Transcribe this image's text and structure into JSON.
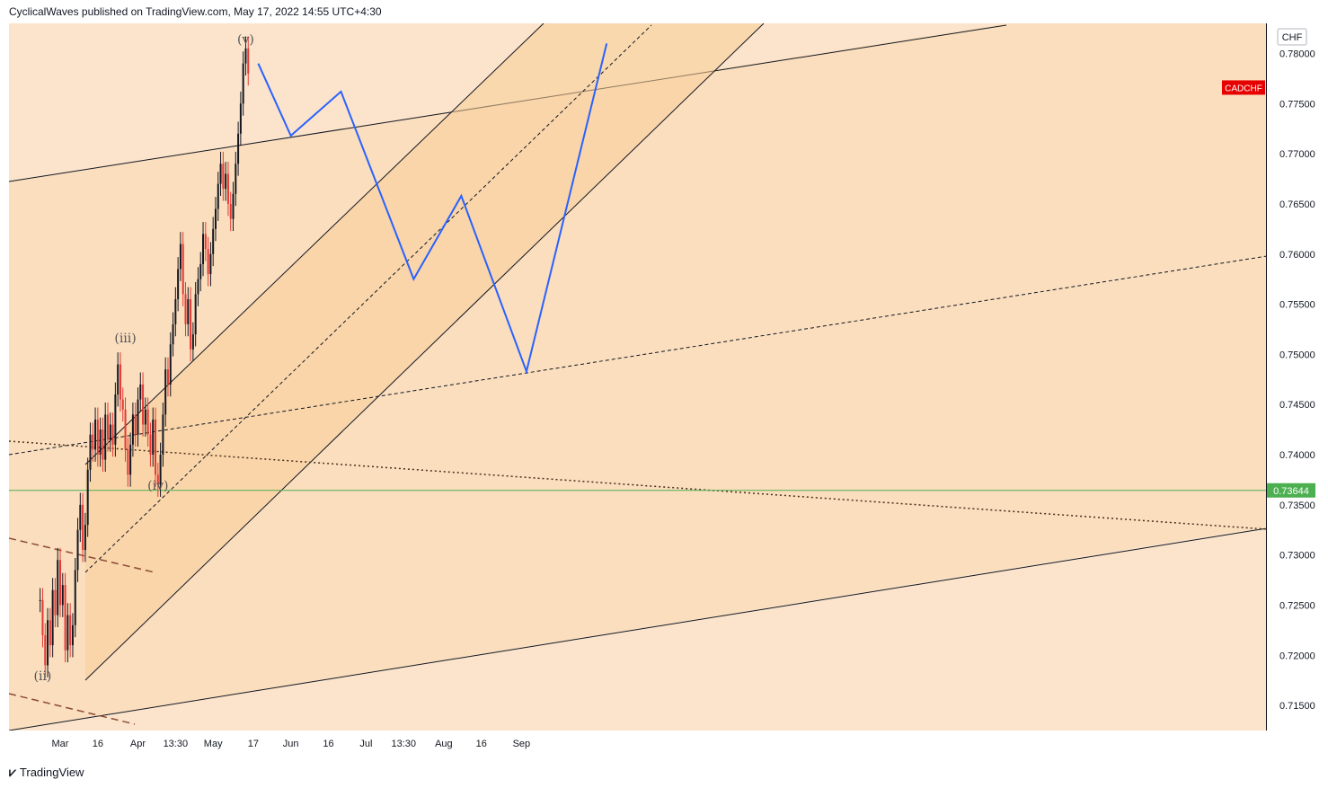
{
  "header": {
    "text": "CyclicalWaves published on TradingView.com, May 17, 2022 14:55 UTC+4:30"
  },
  "footer": {
    "logo_icon": "tradingview-logo-icon",
    "brand": "TradingView"
  },
  "colors": {
    "background": "#fbe4cb",
    "channel_fill": "#f9d6ae",
    "projection_line": "#2962ff",
    "support_line": "#4caf50",
    "candle_up": "#131722",
    "candle_down": "#e53935",
    "price_tag": "#e60000"
  },
  "chart_data": {
    "type": "line",
    "symbol": "CADCHF",
    "currency": "CHF",
    "ylim": [
      0.7125,
      0.783
    ],
    "y_ticks": [
      "0.78000",
      "0.77500",
      "0.77000",
      "0.76500",
      "0.76000",
      "0.75500",
      "0.75000",
      "0.74500",
      "0.74000",
      "0.73500",
      "0.73000",
      "0.72500",
      "0.72000",
      "0.71500"
    ],
    "x_ticks": [
      "Mar",
      "16",
      "Apr",
      "13:30",
      "May",
      "17",
      "Jun",
      "16",
      "Jul",
      "13:30",
      "Aug",
      "16",
      "Sep"
    ],
    "horizontal_line": {
      "value": 0.73644,
      "label": "0.73644"
    },
    "price_tag": {
      "label": "CADCHF",
      "value": 0.7766
    },
    "wave_labels": [
      {
        "label": "(ii)",
        "date": "2022-02-22",
        "value": 0.7175
      },
      {
        "label": "(iii)",
        "date": "2022-03-27",
        "value": 0.7512
      },
      {
        "label": "(iv)",
        "date": "2022-04-09",
        "value": 0.7365
      },
      {
        "label": "(v)",
        "date": "2022-05-14",
        "value": 0.781
      }
    ],
    "projection": {
      "name": "",
      "points": [
        {
          "date": "2022-05-19",
          "value": 0.779
        },
        {
          "date": "2022-06-01",
          "value": 0.7718
        },
        {
          "date": "2022-06-21",
          "value": 0.7762
        },
        {
          "date": "2022-07-20",
          "value": 0.7575
        },
        {
          "date": "2022-08-08",
          "value": 0.7658
        },
        {
          "date": "2022-09-03",
          "value": 0.7483
        },
        {
          "date": "2022-10-05",
          "value": 0.781
        }
      ]
    },
    "ohlc_series": [
      {
        "date": "2022-02-21",
        "value": 0.7255
      },
      {
        "date": "2022-02-22",
        "value": 0.722
      },
      {
        "date": "2022-02-23",
        "value": 0.719
      },
      {
        "date": "2022-02-24",
        "value": 0.7235
      },
      {
        "date": "2022-02-25",
        "value": 0.721
      },
      {
        "date": "2022-02-26",
        "value": 0.7265
      },
      {
        "date": "2022-02-27",
        "value": 0.724
      },
      {
        "date": "2022-02-28",
        "value": 0.7295
      },
      {
        "date": "2022-03-01",
        "value": 0.725
      },
      {
        "date": "2022-03-02",
        "value": 0.727
      },
      {
        "date": "2022-03-03",
        "value": 0.7205
      },
      {
        "date": "2022-03-04",
        "value": 0.724
      },
      {
        "date": "2022-03-05",
        "value": 0.721
      },
      {
        "date": "2022-03-06",
        "value": 0.723
      },
      {
        "date": "2022-03-07",
        "value": 0.7285
      },
      {
        "date": "2022-03-08",
        "value": 0.7325
      },
      {
        "date": "2022-03-09",
        "value": 0.735
      },
      {
        "date": "2022-03-10",
        "value": 0.7305
      },
      {
        "date": "2022-03-11",
        "value": 0.733
      },
      {
        "date": "2022-03-12",
        "value": 0.7385
      },
      {
        "date": "2022-03-13",
        "value": 0.742
      },
      {
        "date": "2022-03-14",
        "value": 0.7405
      },
      {
        "date": "2022-03-15",
        "value": 0.7435
      },
      {
        "date": "2022-03-16",
        "value": 0.74
      },
      {
        "date": "2022-03-17",
        "value": 0.7425
      },
      {
        "date": "2022-03-18",
        "value": 0.7395
      },
      {
        "date": "2022-03-19",
        "value": 0.744
      },
      {
        "date": "2022-03-20",
        "value": 0.7415
      },
      {
        "date": "2022-03-21",
        "value": 0.743
      },
      {
        "date": "2022-03-22",
        "value": 0.741
      },
      {
        "date": "2022-03-23",
        "value": 0.746
      },
      {
        "date": "2022-03-24",
        "value": 0.749
      },
      {
        "date": "2022-03-25",
        "value": 0.7455
      },
      {
        "date": "2022-03-26",
        "value": 0.7445
      },
      {
        "date": "2022-03-27",
        "value": 0.7405
      },
      {
        "date": "2022-03-28",
        "value": 0.738
      },
      {
        "date": "2022-03-29",
        "value": 0.741
      },
      {
        "date": "2022-03-30",
        "value": 0.744
      },
      {
        "date": "2022-03-31",
        "value": 0.742
      },
      {
        "date": "2022-04-01",
        "value": 0.7455
      },
      {
        "date": "2022-04-02",
        "value": 0.747
      },
      {
        "date": "2022-04-03",
        "value": 0.743
      },
      {
        "date": "2022-04-04",
        "value": 0.7445
      },
      {
        "date": "2022-04-05",
        "value": 0.742
      },
      {
        "date": "2022-04-06",
        "value": 0.74
      },
      {
        "date": "2022-04-07",
        "value": 0.7435
      },
      {
        "date": "2022-04-08",
        "value": 0.738
      },
      {
        "date": "2022-04-09",
        "value": 0.737
      },
      {
        "date": "2022-04-10",
        "value": 0.74
      },
      {
        "date": "2022-04-11",
        "value": 0.744
      },
      {
        "date": "2022-04-12",
        "value": 0.7485
      },
      {
        "date": "2022-04-13",
        "value": 0.747
      },
      {
        "date": "2022-04-14",
        "value": 0.751
      },
      {
        "date": "2022-04-15",
        "value": 0.753
      },
      {
        "date": "2022-04-16",
        "value": 0.7555
      },
      {
        "date": "2022-04-17",
        "value": 0.7585
      },
      {
        "date": "2022-04-18",
        "value": 0.761
      },
      {
        "date": "2022-04-19",
        "value": 0.756
      },
      {
        "date": "2022-04-20",
        "value": 0.753
      },
      {
        "date": "2022-04-21",
        "value": 0.7555
      },
      {
        "date": "2022-04-22",
        "value": 0.7505
      },
      {
        "date": "2022-04-23",
        "value": 0.752
      },
      {
        "date": "2022-04-24",
        "value": 0.756
      },
      {
        "date": "2022-04-25",
        "value": 0.7575
      },
      {
        "date": "2022-04-26",
        "value": 0.759
      },
      {
        "date": "2022-04-27",
        "value": 0.762
      },
      {
        "date": "2022-04-28",
        "value": 0.7605
      },
      {
        "date": "2022-04-29",
        "value": 0.758
      },
      {
        "date": "2022-04-30",
        "value": 0.76
      },
      {
        "date": "2022-05-01",
        "value": 0.7625
      },
      {
        "date": "2022-05-02",
        "value": 0.7645
      },
      {
        "date": "2022-05-03",
        "value": 0.767
      },
      {
        "date": "2022-05-04",
        "value": 0.769
      },
      {
        "date": "2022-05-05",
        "value": 0.7665
      },
      {
        "date": "2022-05-06",
        "value": 0.768
      },
      {
        "date": "2022-05-07",
        "value": 0.765
      },
      {
        "date": "2022-05-08",
        "value": 0.7635
      },
      {
        "date": "2022-05-09",
        "value": 0.766
      },
      {
        "date": "2022-05-10",
        "value": 0.769
      },
      {
        "date": "2022-05-11",
        "value": 0.772
      },
      {
        "date": "2022-05-12",
        "value": 0.775
      },
      {
        "date": "2022-05-13",
        "value": 0.779
      },
      {
        "date": "2022-05-14",
        "value": 0.7805
      },
      {
        "date": "2022-05-15",
        "value": 0.778
      }
    ]
  }
}
